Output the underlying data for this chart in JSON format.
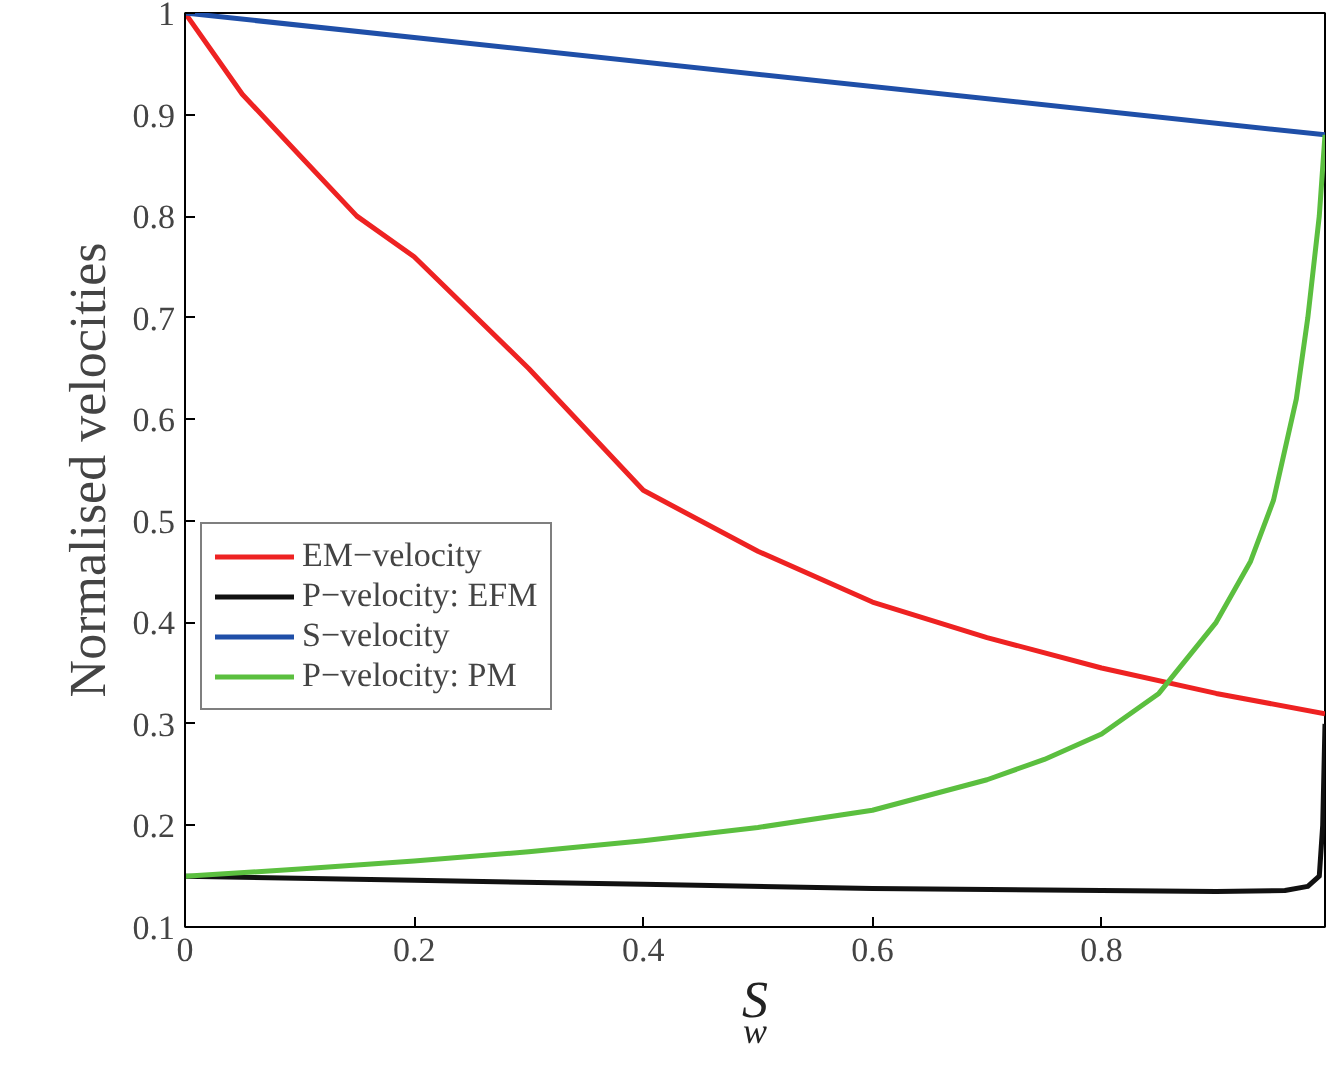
{
  "chart_data": {
    "type": "line",
    "xlabel": "S$_{w}$",
    "ylabel": "Normalised velocities",
    "xlim": [
      0,
      0.995
    ],
    "ylim": [
      0.1,
      1
    ],
    "xticks": [
      0,
      0.2,
      0.4,
      0.6,
      0.8
    ],
    "yticks": [
      0.1,
      0.2,
      0.3,
      0.4,
      0.5,
      0.6,
      0.7,
      0.8,
      0.9,
      1
    ],
    "grid": false,
    "legend": "left",
    "line_style": "solid",
    "marker": "none",
    "series": [
      {
        "name": "EM−velocity",
        "color": "#ee2222",
        "x": [
          0,
          0.05,
          0.1,
          0.15,
          0.2,
          0.3,
          0.4,
          0.5,
          0.6,
          0.7,
          0.8,
          0.9,
          0.995
        ],
        "values": [
          1,
          0.92,
          0.86,
          0.8,
          0.76,
          0.65,
          0.53,
          0.47,
          0.42,
          0.385,
          0.355,
          0.33,
          0.31
        ]
      },
      {
        "name": "P−velocity: EFM",
        "color": "#111111",
        "x": [
          0,
          0.2,
          0.4,
          0.6,
          0.8,
          0.9,
          0.96,
          0.98,
          0.99,
          0.993,
          0.995
        ],
        "values": [
          0.15,
          0.146,
          0.142,
          0.138,
          0.136,
          0.135,
          0.136,
          0.14,
          0.15,
          0.2,
          0.3
        ]
      },
      {
        "name": "S−velocity",
        "color": "#1f4fa8",
        "x": [
          0,
          0.995
        ],
        "values": [
          1,
          0.88
        ]
      },
      {
        "name": "P−velocity: PM",
        "color": "#5bbf3f",
        "x": [
          0,
          0.1,
          0.2,
          0.3,
          0.4,
          0.5,
          0.6,
          0.7,
          0.75,
          0.8,
          0.85,
          0.9,
          0.93,
          0.95,
          0.97,
          0.98,
          0.99,
          0.995
        ],
        "values": [
          0.15,
          0.157,
          0.165,
          0.174,
          0.185,
          0.198,
          0.215,
          0.245,
          0.265,
          0.29,
          0.33,
          0.4,
          0.46,
          0.52,
          0.62,
          0.7,
          0.8,
          0.88
        ]
      }
    ]
  }
}
